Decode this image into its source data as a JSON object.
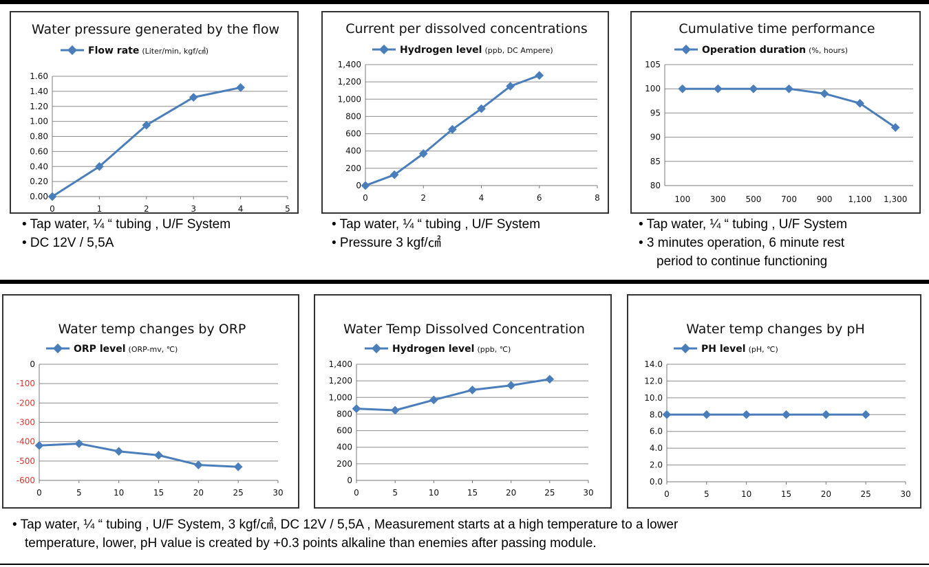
{
  "colors": {
    "line": "#4a7ebb",
    "grid": "#8c8c8c",
    "neg_tick": "#e8302f"
  },
  "notes": {
    "n1": [
      "• Tap water,  ¼ “ tubing  , U/F System",
      "•  DC 12V / 5,5A"
    ],
    "n2": [
      "•  Tap water,  ¼ “ tubing  , U/F System",
      "•  Pressure  3 kgf/㎠"
    ],
    "n3": [
      "•  Tap water,  ¼ “ tubing  , U/F System",
      "•  3 minutes operation, 6 minute rest",
      "period to continue functioning"
    ],
    "bottom": [
      "• Tap water,  ¼ “ tubing  , U/F System,  3 kgf/㎠,  DC 12V / 5,5A ,  Measurement starts at a high temperature to a lower",
      "temperature, lower,  pH value is created by +0.3 points alkaline than enemies after passing module."
    ]
  },
  "chart_data": [
    {
      "type": "line",
      "title": "Water pressure  generated by the flow",
      "legend_main": "Flow rate",
      "legend_sub": "(Liter/min, kgf/㎠)",
      "x": [
        0,
        1,
        2,
        3,
        4
      ],
      "values": [
        0,
        0.4,
        0.95,
        1.32,
        1.45
      ],
      "xlim": [
        0,
        5
      ],
      "ylim": [
        0,
        1.6
      ],
      "xticks": [
        "0",
        "1",
        "2",
        "3",
        "4",
        "5"
      ],
      "yticks": [
        "0.00",
        "0.20",
        "0.40",
        "0.60",
        "0.80",
        "1.00",
        "1.20",
        "1.40",
        "1.60"
      ]
    },
    {
      "type": "line",
      "title": "Current per dissolved concentrations",
      "legend_main": "Hydrogen level",
      "legend_sub": "(ppb, DC Ampere)",
      "x": [
        0,
        1,
        2,
        3,
        4,
        5,
        6
      ],
      "values": [
        0,
        125,
        370,
        650,
        890,
        1150,
        1275
      ],
      "xlim": [
        0,
        8
      ],
      "ylim": [
        0,
        1400
      ],
      "xticks": [
        "0",
        "2",
        "4",
        "6",
        "8"
      ],
      "yticks": [
        "0",
        "200",
        "400",
        "600",
        "800",
        "1,000",
        "1,200",
        "1,400"
      ]
    },
    {
      "type": "line",
      "title": "Cumulative time performance",
      "legend_main": "Operation duration",
      "legend_sub": "(%, hours)",
      "categories": [
        "100",
        "300",
        "500",
        "700",
        "900",
        "1,100",
        "1,300"
      ],
      "values": [
        100,
        100,
        100,
        100,
        99,
        97,
        92
      ],
      "ylim": [
        80,
        105
      ],
      "yticks": [
        "80",
        "85",
        "90",
        "95",
        "100",
        "105"
      ]
    },
    {
      "type": "line",
      "title": "Water temp changes by ORP",
      "legend_main": "ORP level",
      "legend_sub": "(ORP-mv, ℃)",
      "x": [
        0,
        5,
        10,
        15,
        20,
        25
      ],
      "values": [
        -420,
        -410,
        -450,
        -470,
        -520,
        -530
      ],
      "xlim": [
        0,
        30
      ],
      "ylim": [
        -600,
        0
      ],
      "xticks": [
        "0",
        "5",
        "10",
        "15",
        "20",
        "25",
        "30"
      ],
      "yticks": [
        "-600",
        "-500",
        "-400",
        "-300",
        "-200",
        "-100",
        "0"
      ]
    },
    {
      "type": "line",
      "title": "Water Temp Dissolved Concentration",
      "legend_main": "Hydrogen level",
      "legend_sub": "(ppb, ℃)",
      "x": [
        0,
        5,
        10,
        15,
        20,
        25
      ],
      "values": [
        865,
        845,
        970,
        1090,
        1145,
        1220
      ],
      "xlim": [
        0,
        30
      ],
      "ylim": [
        0,
        1400
      ],
      "xticks": [
        "0",
        "5",
        "10",
        "15",
        "20",
        "25",
        "30"
      ],
      "yticks": [
        "0",
        "200",
        "400",
        "600",
        "800",
        "1,000",
        "1,200",
        "1,400"
      ]
    },
    {
      "type": "line",
      "title": "Water temp changes by pH",
      "legend_main": "PH level",
      "legend_sub": "(pH, ℃)",
      "x": [
        0,
        5,
        10,
        15,
        20,
        25
      ],
      "values": [
        8,
        8,
        8,
        8,
        8,
        8
      ],
      "xlim": [
        0,
        30
      ],
      "ylim": [
        0,
        14
      ],
      "xticks": [
        "0",
        "5",
        "10",
        "15",
        "20",
        "25",
        "30"
      ],
      "yticks": [
        "0.0",
        "2.0",
        "4.0",
        "6.0",
        "8.0",
        "10.0",
        "12.0",
        "14.0"
      ]
    }
  ]
}
